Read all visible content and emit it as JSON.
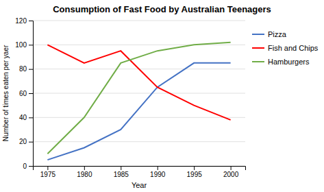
{
  "chart_data": {
    "type": "line",
    "title": "Consumption of Fast Food by Australian Teenagers",
    "x_label": "Year",
    "y_label": "Number of times eaten per yaer",
    "x": [
      1975,
      1980,
      1985,
      1990,
      1995,
      2000
    ],
    "series": [
      {
        "name": "Pizza",
        "color": "#4472C4",
        "values": [
          5,
          15,
          30,
          65,
          85,
          85
        ]
      },
      {
        "name": "Fish and Chips",
        "color": "#FF0000",
        "values": [
          100,
          85,
          95,
          65,
          50,
          38
        ]
      },
      {
        "name": "Hamburgers",
        "color": "#70AD47",
        "values": [
          10,
          40,
          85,
          95,
          100,
          102
        ]
      }
    ],
    "xlim": [
      1973,
      2002
    ],
    "xticks": [
      1975,
      1980,
      1985,
      1990,
      1995,
      2000
    ],
    "ylim": [
      0,
      120
    ],
    "yticks": [
      0,
      20,
      40,
      60,
      80,
      100,
      120
    ],
    "grid": true,
    "legend": "right"
  }
}
